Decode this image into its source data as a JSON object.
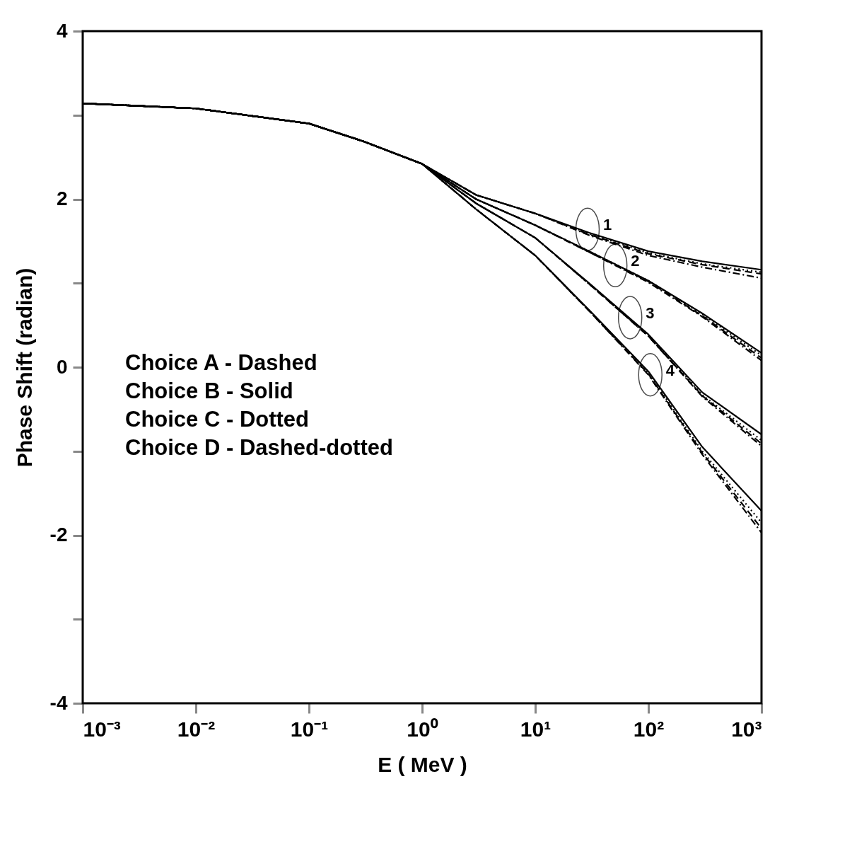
{
  "chart_data": {
    "type": "line",
    "xlabel": "E ( MeV )",
    "ylabel": "Phase Shift (radian)",
    "log": "x",
    "grid": false,
    "marker": "none",
    "xlim": [
      0.001,
      1000
    ],
    "ylim": [
      -4,
      4
    ],
    "xticks": [
      {
        "value": 0.001,
        "label": "10⁻³"
      },
      {
        "value": 0.01,
        "label": "10⁻²"
      },
      {
        "value": 0.1,
        "label": "10⁻¹"
      },
      {
        "value": 1,
        "label": "10⁰"
      },
      {
        "value": 10,
        "label": "10¹"
      },
      {
        "value": 100,
        "label": "10²"
      },
      {
        "value": 1000,
        "label": "10³"
      }
    ],
    "yticks": [
      -4,
      {
        "value": -3,
        "label": null
      },
      -2,
      {
        "value": -1,
        "label": null
      },
      0,
      {
        "value": 1,
        "label": null
      },
      2,
      {
        "value": 3,
        "label": null
      },
      4
    ],
    "x": [
      0.001,
      0.01,
      0.1,
      0.3,
      1,
      3,
      10,
      30,
      100,
      300,
      1000
    ],
    "series": [
      {
        "color": "#000000",
        "line_style": "solid",
        "values": [
          3.14,
          3.08,
          2.9,
          2.69,
          2.42,
          2.05,
          1.83,
          1.6,
          1.38,
          1.26,
          1.16
        ]
      },
      {
        "color": "#000000",
        "line_style": "dashed",
        "values": [
          3.14,
          3.08,
          2.9,
          2.69,
          2.42,
          2.05,
          1.83,
          1.58,
          1.35,
          1.22,
          1.11
        ]
      },
      {
        "color": "#000000",
        "line_style": "dotted",
        "values": [
          3.14,
          3.08,
          2.9,
          2.69,
          2.42,
          2.05,
          1.83,
          1.59,
          1.36,
          1.23,
          1.13
        ]
      },
      {
        "color": "#000000",
        "line_style": "dash-dotted",
        "values": [
          3.14,
          3.08,
          2.9,
          2.69,
          2.42,
          2.05,
          1.83,
          1.57,
          1.33,
          1.19,
          1.06
        ]
      },
      {
        "color": "#000000",
        "line_style": "solid",
        "values": [
          3.14,
          3.08,
          2.9,
          2.69,
          2.42,
          2.0,
          1.69,
          1.38,
          1.03,
          0.64,
          0.17
        ]
      },
      {
        "color": "#000000",
        "line_style": "dashed",
        "values": [
          3.14,
          3.08,
          2.9,
          2.69,
          2.42,
          2.0,
          1.69,
          1.37,
          1.02,
          0.61,
          0.11
        ]
      },
      {
        "color": "#000000",
        "line_style": "dotted",
        "values": [
          3.14,
          3.08,
          2.9,
          2.69,
          2.42,
          2.0,
          1.69,
          1.38,
          1.03,
          0.63,
          0.14
        ]
      },
      {
        "color": "#000000",
        "line_style": "dash-dotted",
        "values": [
          3.14,
          3.08,
          2.9,
          2.69,
          2.42,
          2.0,
          1.69,
          1.37,
          1.01,
          0.6,
          0.08
        ]
      },
      {
        "color": "#000000",
        "line_style": "solid",
        "values": [
          3.14,
          3.08,
          2.9,
          2.69,
          2.42,
          1.95,
          1.54,
          1.0,
          0.39,
          -0.3,
          -0.8
        ]
      },
      {
        "color": "#000000",
        "line_style": "dashed",
        "values": [
          3.14,
          3.08,
          2.9,
          2.69,
          2.42,
          1.95,
          1.54,
          0.99,
          0.37,
          -0.34,
          -0.91
        ]
      },
      {
        "color": "#000000",
        "line_style": "dotted",
        "values": [
          3.14,
          3.08,
          2.9,
          2.69,
          2.42,
          1.95,
          1.54,
          0.99,
          0.38,
          -0.33,
          -0.87
        ]
      },
      {
        "color": "#000000",
        "line_style": "dash-dotted",
        "values": [
          3.14,
          3.08,
          2.9,
          2.69,
          2.42,
          1.95,
          1.54,
          0.99,
          0.37,
          -0.35,
          -0.94
        ]
      },
      {
        "color": "#000000",
        "line_style": "solid",
        "values": [
          3.14,
          3.08,
          2.9,
          2.69,
          2.42,
          1.88,
          1.33,
          0.68,
          -0.05,
          -0.95,
          -1.71
        ]
      },
      {
        "color": "#000000",
        "line_style": "dashed",
        "values": [
          3.14,
          3.08,
          2.9,
          2.69,
          2.42,
          1.88,
          1.33,
          0.67,
          -0.08,
          -1.02,
          -1.92
        ]
      },
      {
        "color": "#000000",
        "line_style": "dotted",
        "values": [
          3.14,
          3.08,
          2.9,
          2.69,
          2.42,
          1.88,
          1.33,
          0.67,
          -0.07,
          -1.0,
          -1.85
        ]
      },
      {
        "color": "#000000",
        "line_style": "dash-dotted",
        "values": [
          3.14,
          3.08,
          2.9,
          2.69,
          2.42,
          1.88,
          1.33,
          0.67,
          -0.09,
          -1.04,
          -1.97
        ]
      }
    ],
    "annotations": [
      "Choice A - Dashed",
      "Choice B - Solid",
      "Choice C - Dotted",
      "Choice D - Dashed-dotted",
      {
        "text": "1",
        "x": 29,
        "y": 1.64
      },
      {
        "text": "2",
        "x": 51,
        "y": 1.21
      },
      {
        "text": "3",
        "x": 69,
        "y": 0.59
      },
      {
        "text": "4",
        "x": 104,
        "y": -0.09
      }
    ]
  }
}
